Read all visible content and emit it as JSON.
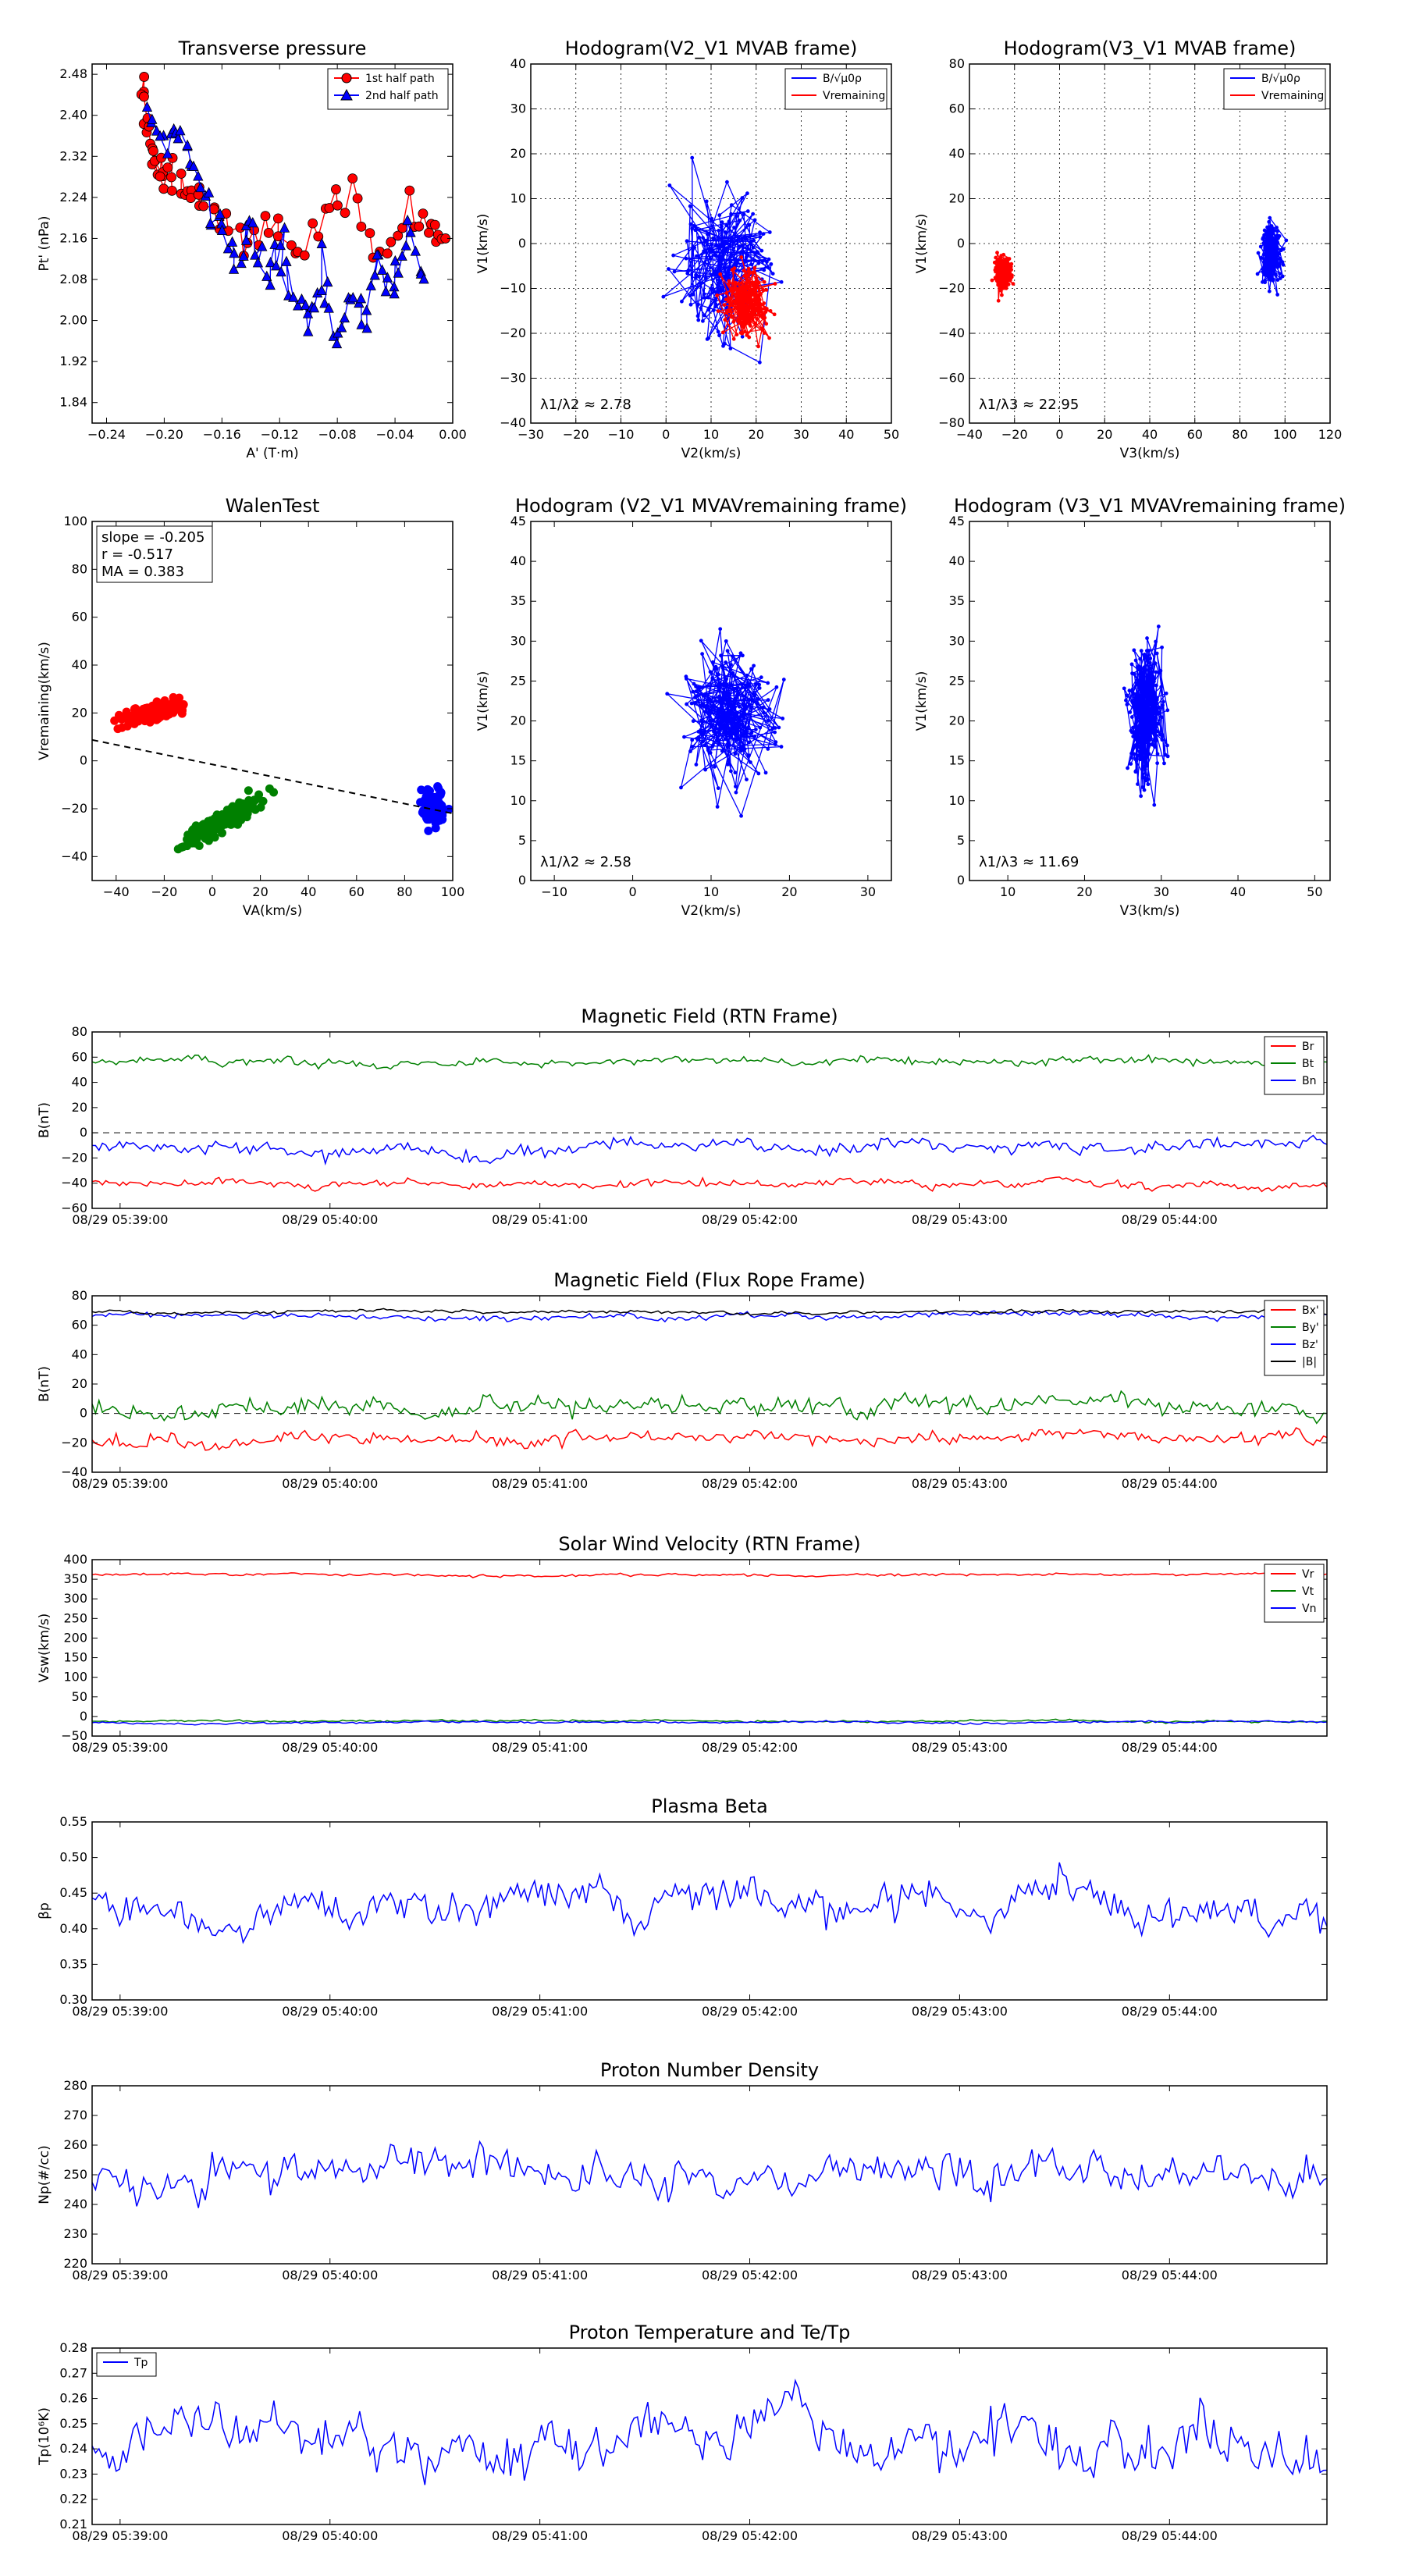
{
  "colors": {
    "red": "#ff0000",
    "green": "#008000",
    "blue": "#0000ff",
    "black": "#000000"
  },
  "chart_data": [
    {
      "id": "pt",
      "type": "scatter",
      "title": "Transverse pressure",
      "xlabel": "A' (T·m)",
      "ylabel": "Pt' (nPa)",
      "xlim": [
        -0.25,
        0.0
      ],
      "ylim": [
        1.8,
        2.5
      ],
      "xticks": [
        -0.24,
        -0.2,
        -0.16,
        -0.12,
        -0.08,
        -0.04,
        0.0
      ],
      "xticklabels": [
        "−0.24",
        "−0.20",
        "−0.16",
        "−0.12",
        "−0.08",
        "−0.04",
        "0.00"
      ],
      "yticks": [
        1.84,
        1.92,
        2.0,
        2.08,
        2.16,
        2.24,
        2.32,
        2.4,
        2.48
      ],
      "yticklabels": [
        "1.84",
        "1.92",
        "2.00",
        "2.08",
        "2.16",
        "2.24",
        "2.32",
        "2.40",
        "2.48"
      ],
      "grid": false,
      "legend": "top-right",
      "series": [
        {
          "name": "1st half path",
          "color": "red",
          "marker": "circle",
          "x": [
            -0.215,
            -0.212,
            -0.208,
            -0.205,
            -0.2,
            -0.19,
            -0.18,
            -0.17,
            -0.15,
            -0.13,
            -0.11,
            -0.09,
            -0.07,
            -0.05,
            -0.03,
            -0.015,
            -0.005
          ],
          "y": [
            2.47,
            2.4,
            2.34,
            2.3,
            2.28,
            2.25,
            2.27,
            2.22,
            2.16,
            2.18,
            2.14,
            2.2,
            2.26,
            2.12,
            2.22,
            2.18,
            2.16
          ]
        },
        {
          "name": "2nd half path",
          "color": "blue",
          "marker": "triangle",
          "x": [
            -0.21,
            -0.2,
            -0.19,
            -0.18,
            -0.17,
            -0.16,
            -0.15,
            -0.14,
            -0.13,
            -0.12,
            -0.11,
            -0.1,
            -0.09,
            -0.08,
            -0.07,
            -0.06,
            -0.05,
            -0.04,
            -0.03,
            -0.02
          ],
          "y": [
            2.42,
            2.35,
            2.38,
            2.3,
            2.22,
            2.18,
            2.1,
            2.2,
            2.08,
            2.15,
            2.06,
            2.0,
            2.12,
            1.95,
            2.05,
            2.0,
            2.12,
            2.06,
            2.18,
            2.08
          ]
        }
      ]
    },
    {
      "id": "h1",
      "type": "line",
      "title": "Hodogram(V2_V1 MVAB frame)",
      "xlabel": "V2(km/s)",
      "ylabel": "V1(km/s)",
      "xlim": [
        -30,
        50
      ],
      "ylim": [
        -40,
        40
      ],
      "xticks": [
        -30,
        -20,
        -10,
        0,
        10,
        20,
        30,
        40,
        50
      ],
      "xticklabels": [
        "−30",
        "−20",
        "−10",
        "0",
        "10",
        "20",
        "30",
        "40",
        "50"
      ],
      "yticks": [
        -40,
        -30,
        -20,
        -10,
        0,
        10,
        20,
        30,
        40
      ],
      "yticklabels": [
        "−40",
        "−30",
        "−20",
        "−10",
        "0",
        "10",
        "20",
        "30",
        "40"
      ],
      "grid": true,
      "legend": "top-right",
      "annotation": "λ1/λ2 ≈ 2.78",
      "series": [
        {
          "name": "B/√μ0ρ",
          "color": "blue",
          "cx": 13,
          "cy": -5,
          "sx": 9,
          "sy": 15,
          "n": 180,
          "seed": 11
        },
        {
          "name": "Vremaining",
          "color": "red",
          "cx": 18,
          "cy": -13,
          "sx": 4,
          "sy": 6,
          "n": 200,
          "seed": 12
        }
      ]
    },
    {
      "id": "h2",
      "type": "line",
      "title": "Hodogram(V3_V1 MVAB frame)",
      "xlabel": "V3(km/s)",
      "ylabel": "V1(km/s)",
      "xlim": [
        -40,
        120
      ],
      "ylim": [
        -80,
        80
      ],
      "xticks": [
        -40,
        -20,
        0,
        20,
        40,
        60,
        80,
        100,
        120
      ],
      "xticklabels": [
        "−40",
        "−20",
        "0",
        "20",
        "40",
        "60",
        "80",
        "100",
        "120"
      ],
      "yticks": [
        -80,
        -60,
        -40,
        -20,
        0,
        20,
        40,
        60,
        80
      ],
      "yticklabels": [
        "−80",
        "−60",
        "−40",
        "−20",
        "0",
        "20",
        "40",
        "60",
        "80"
      ],
      "grid": true,
      "legend": "top-right",
      "annotation": "λ1/λ3 ≈ 22.95",
      "series": [
        {
          "name": "B/√μ0ρ",
          "color": "blue",
          "cx": 94,
          "cy": -5,
          "sx": 4,
          "sy": 12,
          "n": 180,
          "seed": 21
        },
        {
          "name": "Vremaining",
          "color": "red",
          "cx": -25,
          "cy": -13,
          "sx": 3,
          "sy": 7,
          "n": 200,
          "seed": 22
        }
      ]
    },
    {
      "id": "walen",
      "type": "scatter",
      "title": "WalenTest",
      "xlabel": "VA(km/s)",
      "ylabel": "Vremaining(km/s)",
      "xlim": [
        -50,
        100
      ],
      "ylim": [
        -50,
        100
      ],
      "xticks": [
        -40,
        -20,
        0,
        20,
        40,
        60,
        80,
        100
      ],
      "xticklabels": [
        "−40",
        "−20",
        "0",
        "20",
        "40",
        "60",
        "80",
        "100"
      ],
      "yticks": [
        -40,
        -20,
        0,
        20,
        40,
        60,
        80,
        100
      ],
      "yticklabels": [
        "−40",
        "−20",
        "0",
        "20",
        "40",
        "60",
        "80",
        "100"
      ],
      "grid": false,
      "stats": [
        "slope = -0.205",
        "r = -0.517",
        "MA = 0.383"
      ],
      "fit": {
        "slope": -0.205,
        "intercept": -1.5
      },
      "clusters": [
        {
          "color": "red",
          "cx": -25,
          "cy": 20,
          "sx": 10,
          "sy": 3,
          "tilt": 0.2,
          "n": 150,
          "seed": 31
        },
        {
          "color": "green",
          "cx": 5,
          "cy": -25,
          "sx": 14,
          "sy": 4,
          "tilt": 0.55,
          "n": 170,
          "seed": 32
        },
        {
          "color": "blue",
          "cx": 92,
          "cy": -20,
          "sx": 4,
          "sy": 6,
          "tilt": 0,
          "n": 120,
          "seed": 33
        }
      ]
    },
    {
      "id": "h3",
      "type": "line",
      "title": "Hodogram (V2_V1 MVAVremaining frame)",
      "xlabel": "V2(km/s)",
      "ylabel": "V1(km/s)",
      "xlim": [
        -13,
        33
      ],
      "ylim": [
        0,
        45
      ],
      "xticks": [
        -10,
        0,
        10,
        20,
        30
      ],
      "xticklabels": [
        "−10",
        "0",
        "10",
        "20",
        "30"
      ],
      "yticks": [
        0,
        5,
        10,
        15,
        20,
        25,
        30,
        35,
        40,
        45
      ],
      "yticklabels": [
        "0",
        "5",
        "10",
        "15",
        "20",
        "25",
        "30",
        "35",
        "40",
        "45"
      ],
      "grid": false,
      "annotation": "λ1/λ2 ≈ 2.58",
      "series": [
        {
          "color": "blue",
          "cx": 12,
          "cy": 21,
          "sx": 5,
          "sy": 7,
          "n": 220,
          "seed": 41
        }
      ]
    },
    {
      "id": "h4",
      "type": "line",
      "title": "Hodogram (V3_V1 MVAVremaining frame)",
      "xlabel": "V3(km/s)",
      "ylabel": "V1(km/s)",
      "xlim": [
        5,
        52
      ],
      "ylim": [
        0,
        45
      ],
      "xticks": [
        10,
        20,
        30,
        40,
        50
      ],
      "xticklabels": [
        "10",
        "20",
        "30",
        "40",
        "50"
      ],
      "yticks": [
        0,
        5,
        10,
        15,
        20,
        25,
        30,
        35,
        40,
        45
      ],
      "yticklabels": [
        "0",
        "5",
        "10",
        "15",
        "20",
        "25",
        "30",
        "35",
        "40",
        "45"
      ],
      "grid": false,
      "annotation": "λ1/λ3 ≈ 11.69",
      "series": [
        {
          "color": "blue",
          "cx": 28,
          "cy": 21,
          "sx": 2,
          "sy": 7,
          "n": 220,
          "seed": 51
        }
      ]
    },
    {
      "id": "ts_b",
      "type": "line",
      "title": "Magnetic Field (RTN Frame)",
      "ylabel": "B(nT)",
      "ylim": [
        -60,
        80
      ],
      "yticks": [
        -60,
        -40,
        -20,
        0,
        20,
        40,
        60,
        80
      ],
      "yticklabels": [
        "−60",
        "−40",
        "−20",
        "0",
        "20",
        "40",
        "60",
        "80"
      ],
      "zero_line": true,
      "legend": "right",
      "series": [
        {
          "name": "Br",
          "color": "red",
          "base": -40,
          "noise": 3,
          "seed": 61
        },
        {
          "name": "Bt",
          "color": "green",
          "base": 56,
          "noise": 3,
          "seed": 62
        },
        {
          "name": "Bn",
          "color": "blue",
          "base": -12,
          "noise": 5,
          "seed": 63
        }
      ]
    },
    {
      "id": "ts_fr",
      "type": "line",
      "title": "Magnetic Field (Flux Rope Frame)",
      "ylabel": "B(nT)",
      "ylim": [
        -40,
        80
      ],
      "yticks": [
        -40,
        -20,
        0,
        20,
        40,
        60,
        80
      ],
      "yticklabels": [
        "−40",
        "−20",
        "0",
        "20",
        "40",
        "60",
        "80"
      ],
      "zero_line": true,
      "legend": "right",
      "series": [
        {
          "name": "Bx'",
          "color": "red",
          "base": -18,
          "noise": 4,
          "seed": 71
        },
        {
          "name": "By'",
          "color": "green",
          "base": 5,
          "noise": 6,
          "seed": 72
        },
        {
          "name": "Bz'",
          "color": "blue",
          "base": 66,
          "noise": 2,
          "seed": 73
        },
        {
          "name": "|B|",
          "color": "black",
          "base": 69,
          "noise": 1.2,
          "seed": 74
        }
      ]
    },
    {
      "id": "ts_v",
      "type": "line",
      "title": "Solar Wind Velocity (RTN Frame)",
      "ylabel": "Vsw(km/s)",
      "ylim": [
        -50,
        400
      ],
      "yticks": [
        -50,
        0,
        50,
        100,
        150,
        200,
        250,
        300,
        350,
        400
      ],
      "yticklabels": [
        "−50",
        "0",
        "50",
        "100",
        "150",
        "200",
        "250",
        "300",
        "350",
        "400"
      ],
      "zero_line": false,
      "legend": "right",
      "series": [
        {
          "name": "Vr",
          "color": "red",
          "base": 362,
          "noise": 3,
          "seed": 81
        },
        {
          "name": "Vt",
          "color": "green",
          "base": -12,
          "noise": 2.5,
          "seed": 82
        },
        {
          "name": "Vn",
          "color": "blue",
          "base": -15,
          "noise": 2.5,
          "seed": 83
        }
      ]
    },
    {
      "id": "ts_beta",
      "type": "line",
      "title": "Plasma Beta",
      "ylabel": "βp",
      "ylim": [
        0.3,
        0.55
      ],
      "yticks": [
        0.3,
        0.35,
        0.4,
        0.45,
        0.5,
        0.55
      ],
      "yticklabels": [
        "0.30",
        "0.35",
        "0.40",
        "0.45",
        "0.50",
        "0.55"
      ],
      "zero_line": false,
      "series": [
        {
          "color": "blue",
          "base": 0.435,
          "noise": 0.025,
          "seed": 91
        }
      ]
    },
    {
      "id": "ts_np",
      "type": "line",
      "title": "Proton Number Density",
      "ylabel": "Np(#/cc)",
      "ylim": [
        220,
        280
      ],
      "yticks": [
        220,
        230,
        240,
        250,
        260,
        270,
        280
      ],
      "yticklabels": [
        "220",
        "230",
        "240",
        "250",
        "260",
        "270",
        "280"
      ],
      "zero_line": false,
      "series": [
        {
          "color": "blue",
          "base": 249,
          "noise": 6,
          "seed": 101
        }
      ]
    },
    {
      "id": "ts_tp",
      "type": "line",
      "title": "Proton Temperature and Te/Tp",
      "ylabel": "Tp(10⁶K)",
      "ylim": [
        0.21,
        0.28
      ],
      "yticks": [
        0.21,
        0.22,
        0.23,
        0.24,
        0.25,
        0.26,
        0.27,
        0.28
      ],
      "yticklabels": [
        "0.21",
        "0.22",
        "0.23",
        "0.24",
        "0.25",
        "0.26",
        "0.27",
        "0.28"
      ],
      "zero_line": false,
      "legend": "top-left",
      "series": [
        {
          "name": "Tp",
          "color": "blue",
          "base": 0.24,
          "noise": 0.01,
          "seed": 111
        }
      ]
    }
  ],
  "time_axis": {
    "range": [
      "08/29 05:38:52",
      "08/29 05:44:45"
    ],
    "ticks": [
      "08/29 05:39:00",
      "08/29 05:40:00",
      "08/29 05:41:00",
      "08/29 05:42:00",
      "08/29 05:43:00",
      "08/29 05:44:00"
    ]
  }
}
